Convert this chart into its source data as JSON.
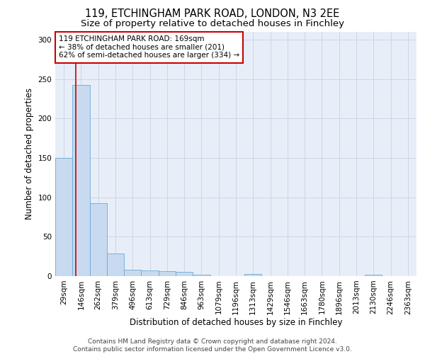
{
  "title1": "119, ETCHINGHAM PARK ROAD, LONDON, N3 2EE",
  "title2": "Size of property relative to detached houses in Finchley",
  "xlabel": "Distribution of detached houses by size in Finchley",
  "ylabel": "Number of detached properties",
  "categories": [
    "29sqm",
    "146sqm",
    "262sqm",
    "379sqm",
    "496sqm",
    "613sqm",
    "729sqm",
    "846sqm",
    "963sqm",
    "1079sqm",
    "1196sqm",
    "1313sqm",
    "1429sqm",
    "1546sqm",
    "1663sqm",
    "1780sqm",
    "1896sqm",
    "2013sqm",
    "2130sqm",
    "2246sqm",
    "2363sqm"
  ],
  "values": [
    150,
    243,
    93,
    29,
    8,
    7,
    6,
    5,
    2,
    0,
    0,
    3,
    0,
    0,
    0,
    0,
    0,
    0,
    2,
    0,
    0
  ],
  "bar_color": "#c8daf0",
  "bar_edge_color": "#6aaad4",
  "annotation_text": "119 ETCHINGHAM PARK ROAD: 169sqm\n← 38% of detached houses are smaller (201)\n62% of semi-detached houses are larger (334) →",
  "annotation_box_color": "#ffffff",
  "annotation_box_edge": "#cc0000",
  "vline_color": "#cc0000",
  "grid_color": "#ccd6e8",
  "bg_color": "#e8eef8",
  "footnote": "Contains HM Land Registry data © Crown copyright and database right 2024.\nContains public sector information licensed under the Open Government Licence v3.0.",
  "ylim": [
    0,
    310
  ],
  "yticks": [
    0,
    50,
    100,
    150,
    200,
    250,
    300
  ],
  "title1_fontsize": 10.5,
  "title2_fontsize": 9.5,
  "xlabel_fontsize": 8.5,
  "ylabel_fontsize": 8.5,
  "tick_fontsize": 7.5,
  "annot_fontsize": 7.5,
  "footnote_fontsize": 6.5
}
